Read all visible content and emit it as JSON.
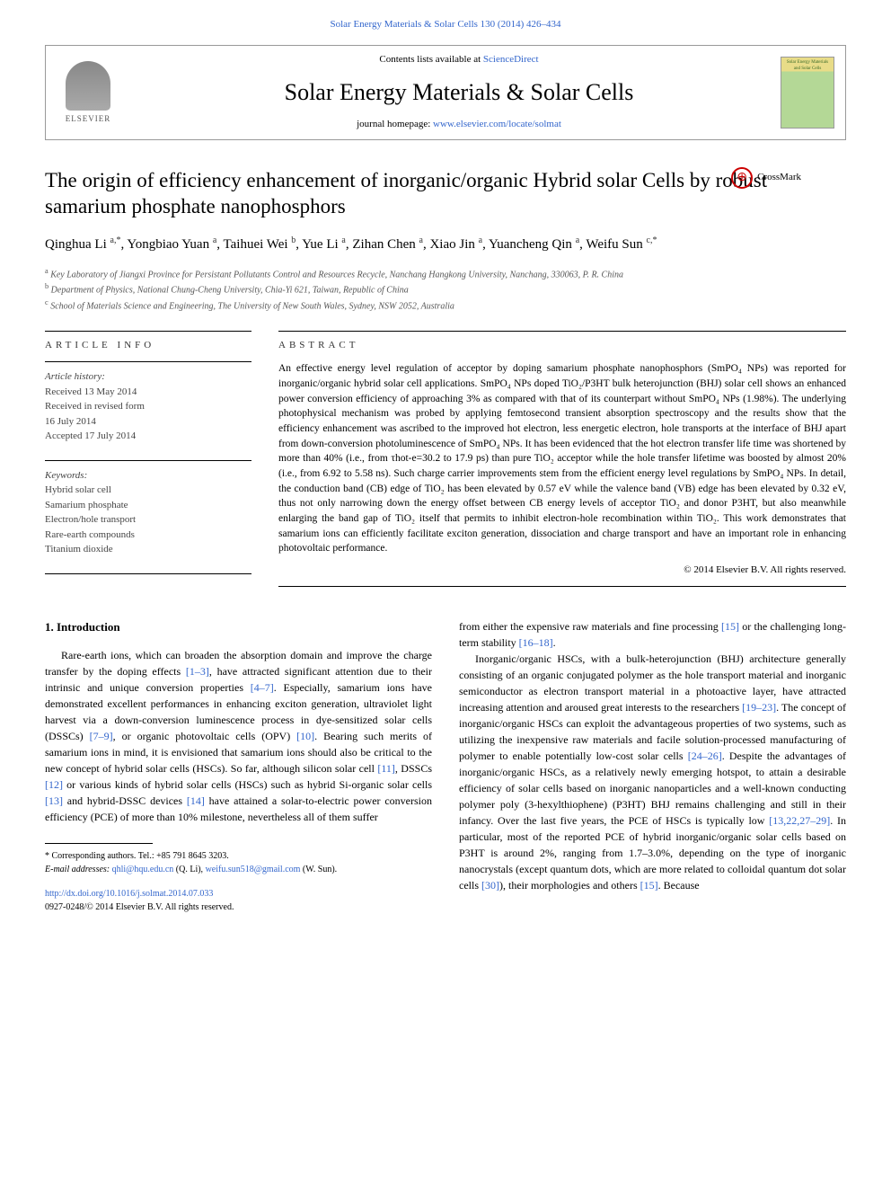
{
  "header": {
    "citation_link": "Solar Energy Materials & Solar Cells 130 (2014) 426–434",
    "contents_prefix": "Contents lists available at ",
    "contents_link": "ScienceDirect",
    "journal_name": "Solar Energy Materials & Solar Cells",
    "homepage_prefix": "journal homepage: ",
    "homepage_link": "www.elsevier.com/locate/solmat",
    "publisher_logo": "ELSEVIER",
    "cover_text": "Solar Energy Materials and Solar Cells"
  },
  "crossmark": {
    "label": "CrossMark"
  },
  "title": "The origin of efficiency enhancement of inorganic/organic Hybrid solar Cells by robust samarium phosphate nanophosphors",
  "authors_html": "Qinghua Li <sup>a,</sup><span class='author-link'><sup>*</sup></span>, Yongbiao Yuan <sup>a</sup>, Taihuei Wei <sup>b</sup>, Yue Li <sup>a</sup>, Zihan Chen <sup>a</sup>, Xiao Jin <sup>a</sup>, Yuancheng Qin <sup>a</sup>, Weifu Sun <sup>c,</sup><span class='author-link'><sup>*</sup></span>",
  "affiliations": [
    {
      "sup": "a",
      "text": "Key Laboratory of Jiangxi Province for Persistant Pollutants Control and Resources Recycle, Nanchang Hangkong University, Nanchang, 330063, P. R. China"
    },
    {
      "sup": "b",
      "text": "Department of Physics, National Chung-Cheng University, Chia-Yi 621, Taiwan, Republic of China"
    },
    {
      "sup": "c",
      "text": "School of Materials Science and Engineering, The University of New South Wales, Sydney, NSW 2052, Australia"
    }
  ],
  "article_info": {
    "heading": "ARTICLE INFO",
    "history_label": "Article history:",
    "history": [
      "Received 13 May 2014",
      "Received in revised form",
      "16 July 2014",
      "Accepted 17 July 2014"
    ],
    "keywords_label": "Keywords:",
    "keywords": [
      "Hybrid solar cell",
      "Samarium phosphate",
      "Electron/hole transport",
      "Rare-earth compounds",
      "Titanium dioxide"
    ]
  },
  "abstract": {
    "heading": "ABSTRACT",
    "text": "An effective energy level regulation of acceptor by doping samarium phosphate nanophosphors (SmPO₄ NPs) was reported for inorganic/organic hybrid solar cell applications. SmPO₄ NPs doped TiO₂/P3HT bulk heterojunction (BHJ) solar cell shows an enhanced power conversion efficiency of approaching 3% as compared with that of its counterpart without SmPO₄ NPs (1.98%). The underlying photophysical mechanism was probed by applying femtosecond transient absorption spectroscopy and the results show that the efficiency enhancement was ascribed to the improved hot electron, less energetic electron, hole transports at the interface of BHJ apart from down-conversion photoluminescence of SmPO₄ NPs. It has been evidenced that the hot electron transfer life time was shortened by more than 40% (i.e., from τhot-e=30.2 to 17.9 ps) than pure TiO₂ acceptor while the hole transfer lifetime was boosted by almost 20% (i.e., from 6.92 to 5.58 ns). Such charge carrier improvements stem from the efficient energy level regulations by SmPO₄ NPs. In detail, the conduction band (CB) edge of TiO₂ has been elevated by 0.57 eV while the valence band (VB) edge has been elevated by 0.32 eV, thus not only narrowing down the energy offset between CB energy levels of acceptor TiO₂ and donor P3HT, but also meanwhile enlarging the band gap of TiO₂ itself that permits to inhibit electron-hole recombination within TiO₂. This work demonstrates that samarium ions can efficiently facilitate exciton generation, dissociation and charge transport and have an important role in enhancing photovoltaic performance.",
    "copyright": "© 2014 Elsevier B.V. All rights reserved."
  },
  "body": {
    "section_heading": "1. Introduction",
    "left_para": "Rare-earth ions, which can broaden the absorption domain and improve the charge transfer by the doping effects <span class='ref-link'>[1–3]</span>, have attracted significant attention due to their intrinsic and unique conversion properties <span class='ref-link'>[4–7]</span>. Especially, samarium ions have demonstrated excellent performances in enhancing exciton generation, ultraviolet light harvest via a down-conversion luminescence process in dye-sensitized solar cells (DSSCs) <span class='ref-link'>[7–9]</span>, or organic photovoltaic cells (OPV) <span class='ref-link'>[10]</span>. Bearing such merits of samarium ions in mind, it is envisioned that samarium ions should also be critical to the new concept of hybrid solar cells (HSCs). So far, although silicon solar cell <span class='ref-link'>[11]</span>, DSSCs <span class='ref-link'>[12]</span> or various kinds of hybrid solar cells (HSCs) such as hybrid Si-organic solar cells <span class='ref-link'>[13]</span> and hybrid-DSSC devices <span class='ref-link'>[14]</span> have attained a solar-to-electric power conversion efficiency (PCE) of more than 10% milestone, nevertheless all of them suffer",
    "right_para_1": "from either the expensive raw materials and fine processing <span class='ref-link'>[15]</span> or the challenging long-term stability <span class='ref-link'>[16–18]</span>.",
    "right_para_2": "Inorganic/organic HSCs, with a bulk-heterojunction (BHJ) architecture generally consisting of an organic conjugated polymer as the hole transport material and inorganic semiconductor as electron transport material in a photoactive layer, have attracted increasing attention and aroused great interests to the researchers <span class='ref-link'>[19–23]</span>. The concept of inorganic/organic HSCs can exploit the advantageous properties of two systems, such as utilizing the inexpensive raw materials and facile solution-processed manufacturing of polymer to enable potentially low-cost solar cells <span class='ref-link'>[24–26]</span>. Despite the advantages of inorganic/organic HSCs, as a relatively newly emerging hotspot, to attain a desirable efficiency of solar cells based on inorganic nanoparticles and a well-known conducting polymer poly (3-hexylthiophene) (P3HT) BHJ remains challenging and still in their infancy. Over the last five years, the PCE of HSCs is typically low <span class='ref-link'>[13,22,27–29]</span>. In particular, most of the reported PCE of hybrid inorganic/organic solar cells based on P3HT is around 2%, ranging from 1.7–3.0%, depending on the type of inorganic nanocrystals (except quantum dots, which are more related to colloidal quantum dot solar cells <span class='ref-link'>[30]</span>), their morphologies and others <span class='ref-link'>[15]</span>. Because"
  },
  "footnotes": {
    "corr": "* Corresponding authors. Tel.: +85 791 8645 3203.",
    "email_label": "E-mail addresses: ",
    "email1": "qhli@hqu.edu.cn",
    "email1_who": " (Q. Li), ",
    "email2": "weifu.sun518@gmail.com",
    "email2_who": " (W. Sun)."
  },
  "doi": {
    "link": "http://dx.doi.org/10.1016/j.solmat.2014.07.033",
    "issn": "0927-0248/© 2014 Elsevier B.V. All rights reserved."
  },
  "colors": {
    "link": "#3366cc",
    "text": "#000000",
    "muted": "#555555"
  }
}
